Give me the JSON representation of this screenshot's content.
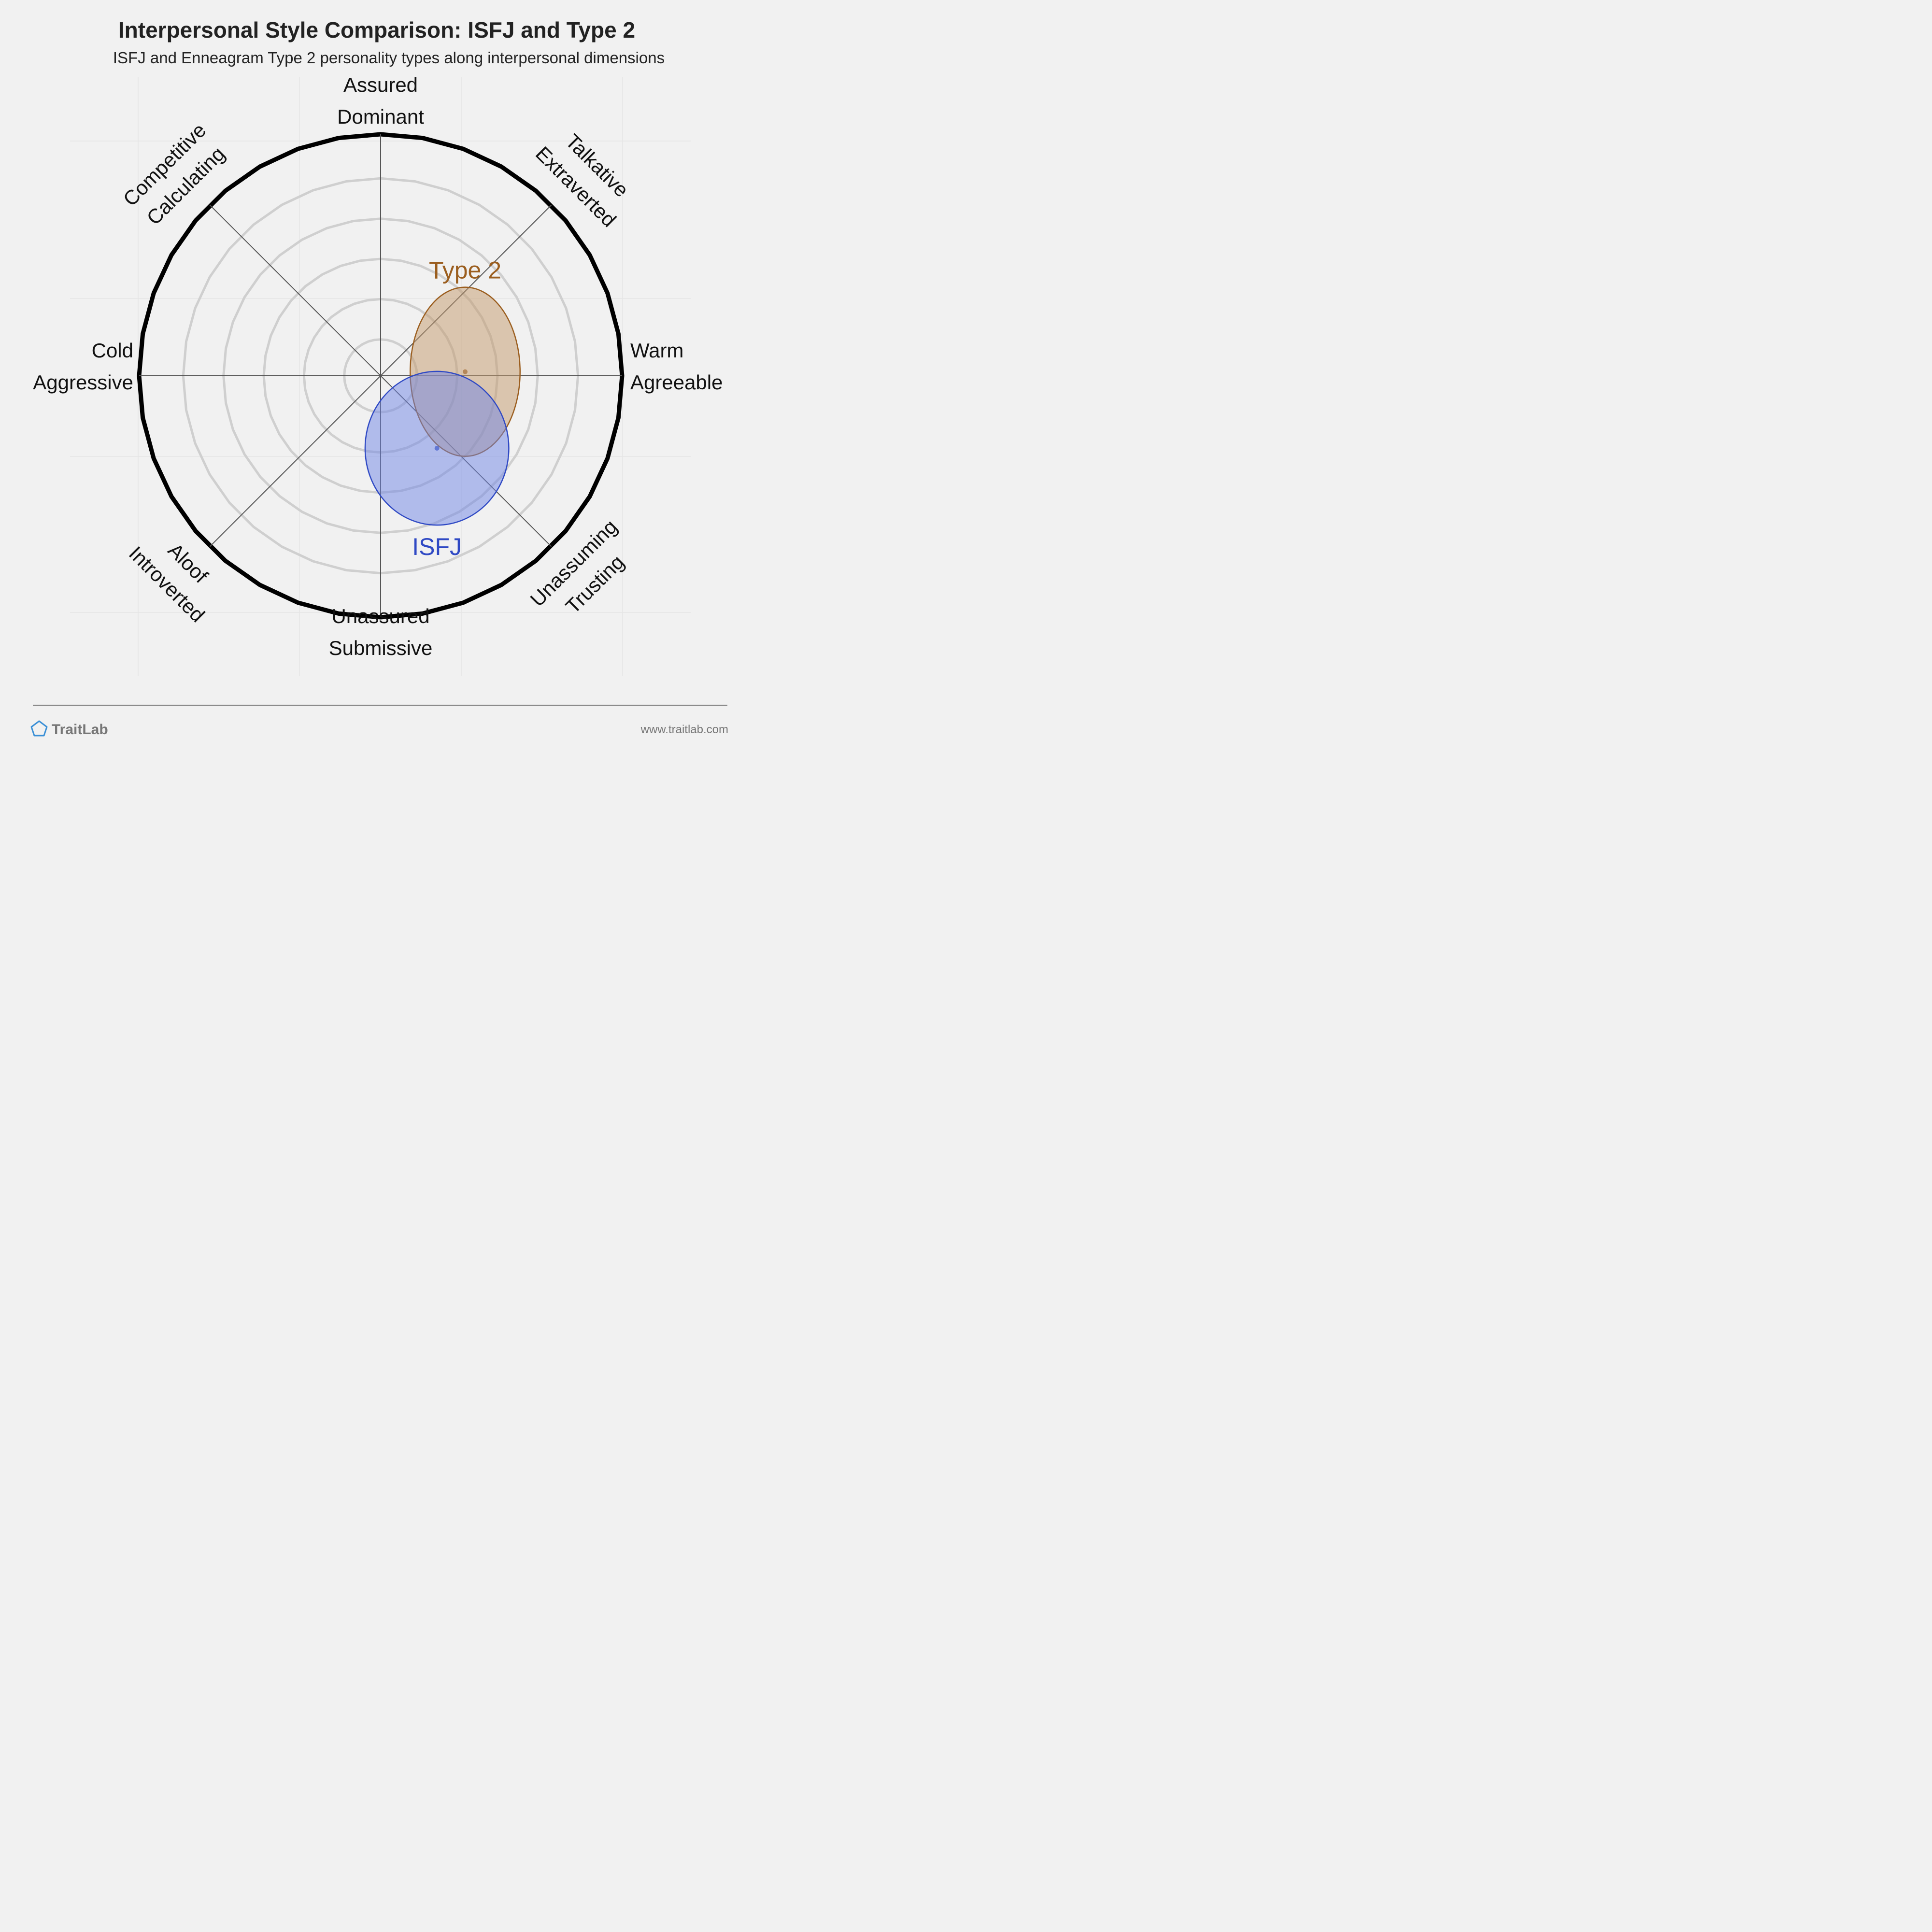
{
  "chart_data": {
    "type": "scatter",
    "subtype": "polar-circumplex",
    "title": "Interpersonal Style Comparison: ISFJ and Type 2",
    "subtitle": "ISFJ and Enneagram Type 2 personality types along interpersonal dimensions",
    "axis_range": [
      -6,
      6
    ],
    "rings": [
      1,
      2,
      3,
      4,
      5,
      6
    ],
    "grid": true,
    "axes": [
      {
        "name": "east",
        "lines": [
          "Warm",
          "Agreeable"
        ]
      },
      {
        "name": "north-east",
        "lines": [
          "Talkative",
          "Extraverted"
        ]
      },
      {
        "name": "north",
        "lines": [
          "Assured",
          "Dominant"
        ]
      },
      {
        "name": "north-west",
        "lines": [
          "Competitive",
          "Calculating"
        ]
      },
      {
        "name": "west",
        "lines": [
          "Cold",
          "Aggressive"
        ]
      },
      {
        "name": "south-west",
        "lines": [
          "Aloof",
          "Introverted"
        ]
      },
      {
        "name": "south",
        "lines": [
          "Unassured",
          "Submissive"
        ]
      },
      {
        "name": "south-east",
        "lines": [
          "Unassuming",
          "Trusting"
        ]
      }
    ],
    "series": [
      {
        "name": "Type 2",
        "x": 2.1,
        "y": 0.1,
        "spread_x": 1.3,
        "spread_y": 2.2,
        "color": "#9b5e1f",
        "fill": "#c49a6c"
      },
      {
        "name": "ISFJ",
        "x": 1.4,
        "y": -1.8,
        "spread_x": 1.7,
        "spread_y": 2.0,
        "color": "#2f49c4",
        "fill": "#6f86e6"
      }
    ]
  },
  "footer": {
    "brand": "TraitLab",
    "url": "www.traitlab.com"
  },
  "colors": {
    "background": "#f1f1f1",
    "ring": "#cfcfcf",
    "outer_ring": "#000000",
    "axis": "#555555",
    "brand_icon": "#3a8fd6"
  }
}
